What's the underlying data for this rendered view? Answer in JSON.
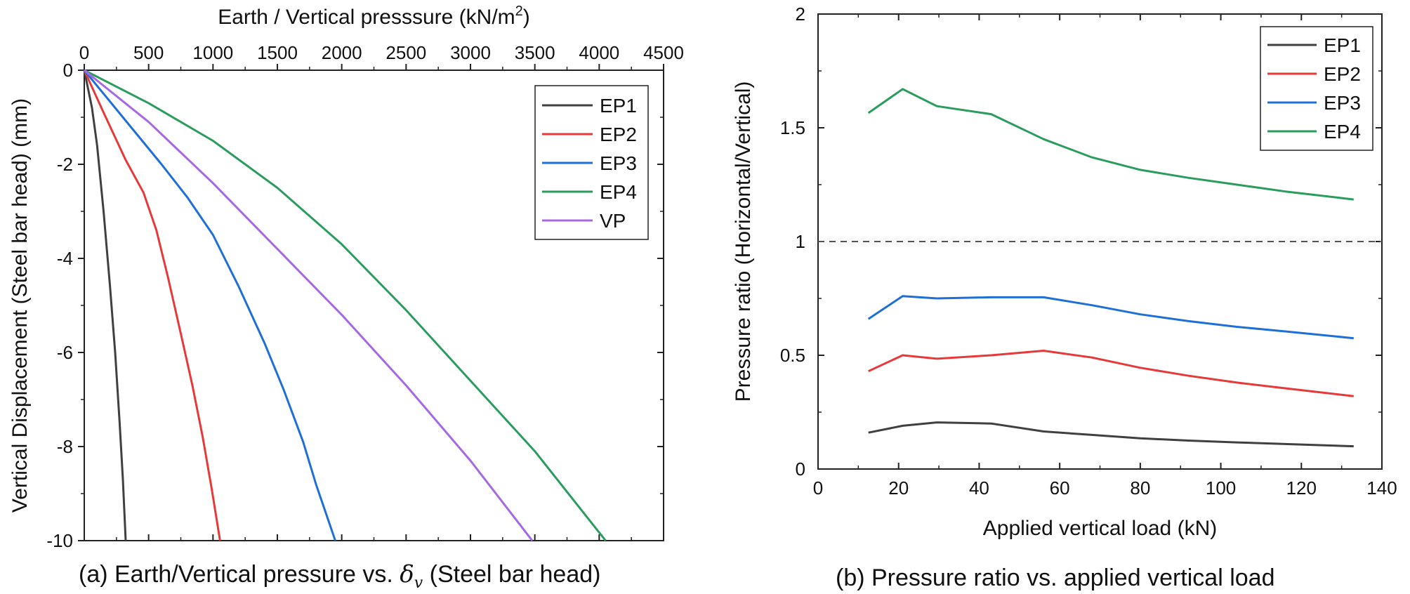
{
  "captions": {
    "a_before": "(a) Earth/Vertical pressure vs. ",
    "a_symbol": "δ",
    "a_subscript": "v",
    "a_after": " (Steel bar head)",
    "b": "(b) Pressure ratio vs. applied vertical load"
  },
  "chart_data": [
    {
      "id": "a",
      "type": "line",
      "title": "",
      "xlabel": "Earth / Vertical presssure (kN/m2)",
      "xlabel_main": "Earth / Vertical presssure (kN/m",
      "xlabel_sup": "2",
      "xlabel_end": ")",
      "ylabel": "Vertical Displacement (Steel bar head) (mm)",
      "xlim": [
        0,
        4500
      ],
      "ylim": [
        -10,
        0
      ],
      "x_axis_position": "top",
      "xticks": [
        0,
        500,
        1000,
        1500,
        2000,
        2500,
        3000,
        3500,
        4000,
        4500
      ],
      "yticks": [
        0,
        -2,
        -4,
        -6,
        -8,
        -10
      ],
      "grid": false,
      "legend_position": "top-right",
      "series": [
        {
          "name": "EP1",
          "color": "#404040",
          "x": [
            0,
            60,
            100,
            150,
            200,
            240,
            275,
            300,
            322
          ],
          "y": [
            0,
            -0.8,
            -1.6,
            -3.0,
            -4.6,
            -6.0,
            -7.5,
            -8.7,
            -10
          ]
        },
        {
          "name": "EP2",
          "color": "#e8393a",
          "x": [
            0,
            150,
            320,
            460,
            560,
            650,
            750,
            840,
            920,
            990,
            1055
          ],
          "y": [
            0,
            -0.9,
            -1.9,
            -2.6,
            -3.4,
            -4.4,
            -5.6,
            -6.7,
            -7.8,
            -8.9,
            -10
          ]
        },
        {
          "name": "EP3",
          "color": "#1f6fd8",
          "x": [
            0,
            300,
            600,
            800,
            1000,
            1200,
            1400,
            1550,
            1700,
            1800,
            1950
          ],
          "y": [
            0,
            -1.0,
            -2.0,
            -2.7,
            -3.5,
            -4.6,
            -5.8,
            -6.8,
            -7.9,
            -8.8,
            -10
          ]
        },
        {
          "name": "EP4",
          "color": "#2a9d5e",
          "x": [
            0,
            500,
            1000,
            1500,
            2000,
            2500,
            3000,
            3500,
            4050
          ],
          "y": [
            0,
            -0.7,
            -1.5,
            -2.5,
            -3.7,
            -5.1,
            -6.6,
            -8.1,
            -10
          ]
        },
        {
          "name": "VP",
          "color": "#a569e3",
          "x": [
            0,
            500,
            1000,
            1500,
            2000,
            2500,
            3000,
            3480
          ],
          "y": [
            0,
            -1.1,
            -2.4,
            -3.8,
            -5.2,
            -6.7,
            -8.3,
            -10
          ]
        }
      ]
    },
    {
      "id": "b",
      "type": "line",
      "title": "",
      "xlabel": "Applied vertical load (kN)",
      "ylabel": "Pressure ratio (Horizontal/Vertical)",
      "xlim": [
        0,
        140
      ],
      "ylim": [
        0,
        2
      ],
      "xticks": [
        0,
        20,
        40,
        60,
        80,
        100,
        120,
        140
      ],
      "yticks": [
        0,
        0.5,
        1,
        1.5,
        2
      ],
      "grid": false,
      "legend_position": "top-right",
      "reference_line": {
        "y": 1,
        "style": "dashed"
      },
      "x": [
        12.5,
        21,
        29.5,
        43,
        56,
        68,
        80,
        92,
        104,
        116,
        133
      ],
      "series": [
        {
          "name": "EP1",
          "color": "#404040",
          "values": [
            0.16,
            0.19,
            0.205,
            0.2,
            0.165,
            0.15,
            0.135,
            0.125,
            0.117,
            0.11,
            0.1
          ]
        },
        {
          "name": "EP2",
          "color": "#e8393a",
          "values": [
            0.43,
            0.5,
            0.485,
            0.5,
            0.52,
            0.49,
            0.445,
            0.41,
            0.38,
            0.355,
            0.32
          ]
        },
        {
          "name": "EP3",
          "color": "#1f6fd8",
          "values": [
            0.66,
            0.76,
            0.75,
            0.755,
            0.755,
            0.72,
            0.68,
            0.65,
            0.625,
            0.605,
            0.575
          ]
        },
        {
          "name": "EP4",
          "color": "#2a9d5e",
          "values": [
            1.565,
            1.67,
            1.595,
            1.56,
            1.45,
            1.37,
            1.315,
            1.28,
            1.25,
            1.22,
            1.185
          ]
        }
      ]
    }
  ]
}
